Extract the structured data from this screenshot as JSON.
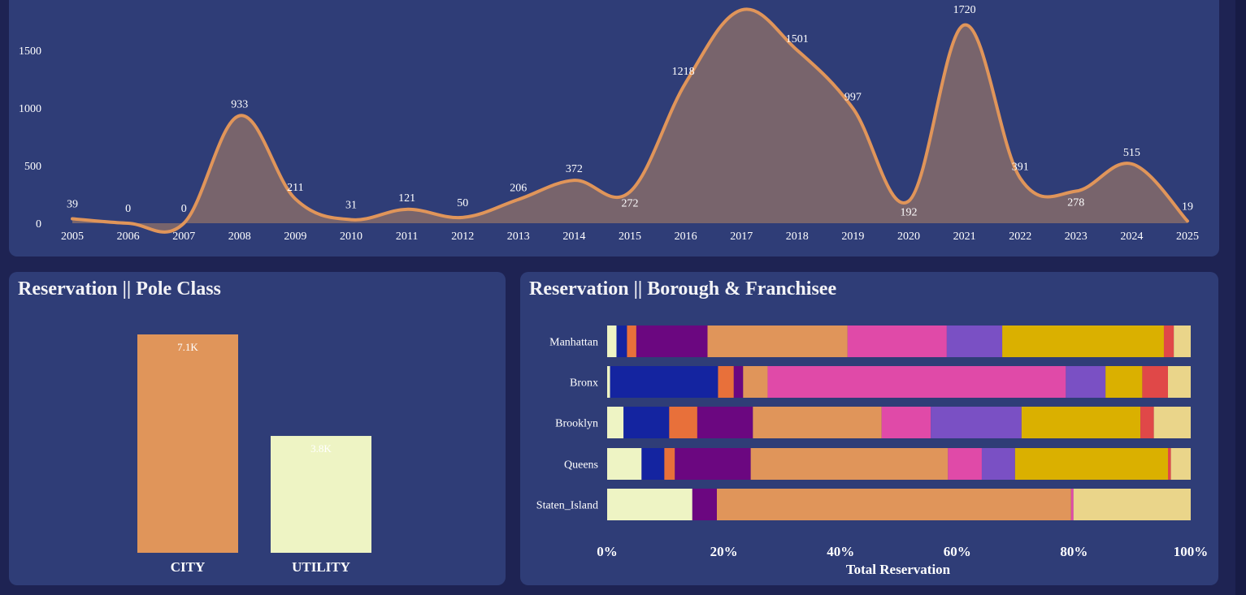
{
  "colors": {
    "background": "#1e2353",
    "card": "#2f3d77",
    "line": "#e0955a",
    "area": "#78646c",
    "text": "#ffffff"
  },
  "trend": {
    "y_ticks": [
      "0",
      "500",
      "1000",
      "1500"
    ]
  },
  "pole_class": {
    "title": "Reservation || Pole Class"
  },
  "borough": {
    "title": "Reservation || Borough & Franchisee",
    "x_ticks": [
      "0%",
      "20%",
      "40%",
      "60%",
      "80%",
      "100%"
    ],
    "xlabel": "Total Reservation"
  },
  "chart_data": [
    {
      "type": "area",
      "title": "",
      "x": [
        "2005",
        "2006",
        "2007",
        "2008",
        "2009",
        "2010",
        "2011",
        "2012",
        "2013",
        "2014",
        "2015",
        "2016",
        "2017",
        "2018",
        "2019",
        "2020",
        "2021",
        "2022",
        "2023",
        "2024",
        "2025"
      ],
      "values": [
        39,
        0,
        0,
        933,
        211,
        31,
        121,
        50,
        206,
        372,
        272,
        1218,
        1850,
        1501,
        997,
        192,
        1720,
        391,
        278,
        515,
        19
      ],
      "data_labels": [
        "39",
        "0",
        "0",
        "933",
        "211",
        "31",
        "121",
        "50",
        "206",
        "372",
        "272",
        "1218",
        "",
        "1501",
        "997",
        "192",
        "1720",
        "391",
        "278",
        "515",
        "19"
      ],
      "ylim": [
        0,
        1850
      ],
      "line_color": "#e0955a",
      "fill_color": "#78646c"
    },
    {
      "type": "bar",
      "title": "Reservation || Pole Class",
      "categories": [
        "CITY",
        "UTILITY"
      ],
      "values": [
        7100,
        3800
      ],
      "data_labels": [
        "7.1K",
        "3.8K"
      ],
      "colors": [
        "#e0955a",
        "#eef4c4"
      ],
      "ylim": [
        0,
        7100
      ]
    },
    {
      "type": "bar",
      "title": "Reservation || Borough & Franchisee",
      "orientation": "horizontal-stacked-100",
      "xlabel": "Total Reservation",
      "categories": [
        "Manhattan",
        "Bronx",
        "Brooklyn",
        "Queens",
        "Staten_Island"
      ],
      "segment_colors": [
        "#eef4c4",
        "#1424a0",
        "#e8703a",
        "#6b0780",
        "#e0955a",
        "#e04aa8",
        "#7a50c4",
        "#dab000",
        "#e04848",
        "#ead58a"
      ],
      "rows": [
        [
          1.6,
          1.8,
          1.6,
          12.2,
          24.0,
          17.0,
          9.5,
          27.7,
          1.7,
          2.9
        ],
        [
          0.5,
          18.5,
          2.7,
          1.6,
          4.2,
          51.1,
          6.8,
          6.3,
          4.4,
          3.9
        ],
        [
          2.8,
          7.8,
          4.8,
          9.5,
          22.0,
          8.4,
          15.5,
          20.3,
          2.3,
          6.3
        ],
        [
          5.9,
          3.9,
          1.8,
          13.0,
          33.8,
          5.8,
          5.7,
          26.2,
          0.5,
          3.4
        ],
        [
          14.6,
          0.0,
          0.0,
          4.2,
          60.7,
          0.4,
          0.0,
          0.0,
          0.0,
          20.1
        ]
      ]
    }
  ]
}
